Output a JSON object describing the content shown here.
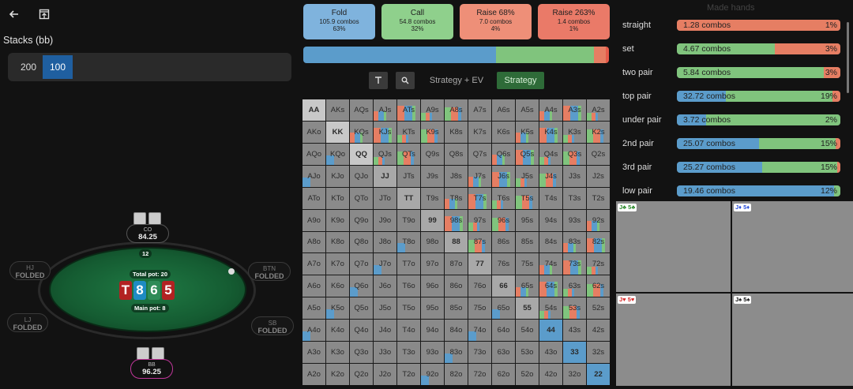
{
  "colors": {
    "fold": "#5b9ccb",
    "call": "#80c47d",
    "raise_small": "#e67e63",
    "raise_big": "#e55a4a",
    "felt": "#1f7a44"
  },
  "toolbar": {
    "back_icon": "arrow-left-icon",
    "export_icon": "export-icon"
  },
  "stacks": {
    "label": "Stacks (bb)",
    "items": [
      "200",
      "100"
    ],
    "selected": "100"
  },
  "table": {
    "players": {
      "co": {
        "pos": "CO",
        "stack": "84.25"
      },
      "bb": {
        "pos": "BB",
        "stack": "96.25"
      }
    },
    "folded": [
      {
        "pos": "HJ",
        "status": "FOLDED"
      },
      {
        "pos": "LJ",
        "status": "FOLDED"
      },
      {
        "pos": "BTN",
        "status": "FOLDED"
      },
      {
        "pos": "SB",
        "status": "FOLDED"
      }
    ],
    "bet": "12",
    "total_pot": "Total pot: 20",
    "main_pot": "Main pot: 8",
    "board": [
      {
        "rank": "T",
        "color": "#b22222"
      },
      {
        "rank": "8",
        "color": "#1e8bc3"
      },
      {
        "rank": "6",
        "color": "#2e8b57"
      },
      {
        "rank": "5",
        "color": "#b22222"
      }
    ]
  },
  "actions": [
    {
      "label": "Fold",
      "combos": "105.9 combos",
      "pct": "63%",
      "color": "#7fb3dd"
    },
    {
      "label": "Call",
      "combos": "54.8 combos",
      "pct": "32%",
      "color": "#8fd08c"
    },
    {
      "label": "Raise 68%",
      "combos": "7.0 combos",
      "pct": "4%",
      "color": "#ee8f78"
    },
    {
      "label": "Raise 263%",
      "combos": "1.4 combos",
      "pct": "1%",
      "color": "#ea7a68"
    }
  ],
  "freqbar": {
    "fold": 63,
    "call": 32,
    "raise_small": 4,
    "raise_big": 1
  },
  "view_controls": {
    "filter_icon": "filter-icon",
    "search_icon": "search-icon",
    "strategy_ev": "Strategy + EV",
    "strategy": "Strategy"
  },
  "grid": {
    "ranks": [
      "A",
      "K",
      "Q",
      "J",
      "T",
      "9",
      "8",
      "7",
      "6",
      "5",
      "4",
      "3",
      "2"
    ]
  },
  "made_hands": {
    "title": "Made hands",
    "rows": [
      {
        "name": "straight",
        "combos": "1.28 combos",
        "pct": "1%",
        "fold": 0,
        "call": 0,
        "raise": 100,
        "fill": 100
      },
      {
        "name": "set",
        "combos": "4.67 combos",
        "pct": "3%",
        "fold": 0,
        "call": 60,
        "raise": 40,
        "fill": 100
      },
      {
        "name": "two pair",
        "combos": "5.84 combos",
        "pct": "3%",
        "fold": 0,
        "call": 90,
        "raise": 10,
        "fill": 100
      },
      {
        "name": "top pair",
        "combos": "32.72 combos",
        "pct": "19%",
        "fold": 30,
        "call": 65,
        "raise": 5,
        "fill": 100
      },
      {
        "name": "under pair",
        "combos": "3.72 combos",
        "pct": "2%",
        "fold": 18,
        "call": 82,
        "raise": 0,
        "fill": 100
      },
      {
        "name": "2nd pair",
        "combos": "25.07 combos",
        "pct": "15%",
        "fold": 50,
        "call": 47,
        "raise": 3,
        "fill": 100
      },
      {
        "name": "3rd pair",
        "combos": "25.27 combos",
        "pct": "15%",
        "fold": 52,
        "call": 46,
        "raise": 2,
        "fill": 100
      },
      {
        "name": "low pair",
        "combos": "19.46 combos",
        "pct": "12%",
        "fold": 96,
        "call": 4,
        "raise": 0,
        "fill": 100
      }
    ]
  },
  "hand_quads": [
    {
      "label": "J♣ 5♣",
      "color": "#2e8b2e"
    },
    {
      "label": "J♦ 5♦",
      "color": "#2a4fd8"
    },
    {
      "label": "J♥ 5♥",
      "color": "#d82a2a"
    },
    {
      "label": "J♠ 5♠",
      "color": "#111111"
    }
  ]
}
